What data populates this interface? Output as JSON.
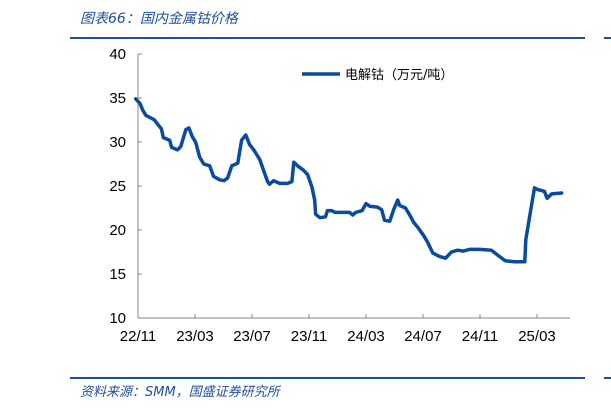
{
  "header": {
    "title": "图表66：国内金属钴价格"
  },
  "footer": {
    "source": "资料来源：SMM，国盛证券研究所"
  },
  "colors": {
    "accent": "#1f4e9a",
    "series": "#0a4a9f"
  },
  "chart_data": {
    "type": "line",
    "title": "",
    "xlabel": "",
    "ylabel": "",
    "ylim": [
      10,
      40
    ],
    "yticks": [
      10,
      15,
      20,
      25,
      30,
      35,
      40
    ],
    "xticks": [
      {
        "label": "22/11",
        "date": "2022-11-01"
      },
      {
        "label": "23/03",
        "date": "2023-03-01"
      },
      {
        "label": "23/07",
        "date": "2023-07-01"
      },
      {
        "label": "23/11",
        "date": "2023-11-01"
      },
      {
        "label": "24/03",
        "date": "2024-03-01"
      },
      {
        "label": "24/07",
        "date": "2024-07-01"
      },
      {
        "label": "24/11",
        "date": "2024-11-01"
      },
      {
        "label": "25/03",
        "date": "2025-03-01"
      }
    ],
    "grid": false,
    "legend_position": "top-right",
    "series": [
      {
        "name": "电解钴（万元/吨）",
        "points": [
          [
            "2022-10-27",
            34.9
          ],
          [
            "2022-11-05",
            34.4
          ],
          [
            "2022-11-11",
            33.6
          ],
          [
            "2022-11-18",
            33.0
          ],
          [
            "2022-11-26",
            32.8
          ],
          [
            "2022-12-06",
            32.5
          ],
          [
            "2022-12-13",
            32.0
          ],
          [
            "2022-12-21",
            31.5
          ],
          [
            "2022-12-25",
            30.5
          ],
          [
            "2023-01-08",
            30.2
          ],
          [
            "2023-01-12",
            29.4
          ],
          [
            "2023-01-25",
            29.1
          ],
          [
            "2023-02-01",
            29.5
          ],
          [
            "2023-02-11",
            31.4
          ],
          [
            "2023-02-17",
            31.6
          ],
          [
            "2023-02-23",
            30.7
          ],
          [
            "2023-03-03",
            29.9
          ],
          [
            "2023-03-11",
            28.3
          ],
          [
            "2023-03-20",
            27.5
          ],
          [
            "2023-04-02",
            27.3
          ],
          [
            "2023-04-10",
            26.1
          ],
          [
            "2023-04-23",
            25.7
          ],
          [
            "2023-05-02",
            25.6
          ],
          [
            "2023-05-10",
            25.9
          ],
          [
            "2023-05-19",
            27.3
          ],
          [
            "2023-06-01",
            27.6
          ],
          [
            "2023-06-09",
            30.2
          ],
          [
            "2023-06-18",
            30.8
          ],
          [
            "2023-06-26",
            29.7
          ],
          [
            "2023-07-05",
            29.1
          ],
          [
            "2023-07-18",
            28.0
          ],
          [
            "2023-07-26",
            26.8
          ],
          [
            "2023-08-04",
            25.5
          ],
          [
            "2023-08-08",
            25.2
          ],
          [
            "2023-08-17",
            25.6
          ],
          [
            "2023-08-30",
            25.3
          ],
          [
            "2023-09-16",
            25.3
          ],
          [
            "2023-09-25",
            25.5
          ],
          [
            "2023-09-29",
            27.7
          ],
          [
            "2023-10-07",
            27.3
          ],
          [
            "2023-10-20",
            26.8
          ],
          [
            "2023-10-29",
            26.3
          ],
          [
            "2023-11-07",
            24.9
          ],
          [
            "2023-11-13",
            23.4
          ],
          [
            "2023-11-15",
            21.8
          ],
          [
            "2023-11-24",
            21.4
          ],
          [
            "2023-12-06",
            21.5
          ],
          [
            "2023-12-10",
            22.2
          ],
          [
            "2023-12-19",
            22.2
          ],
          [
            "2023-12-27",
            22.0
          ],
          [
            "2024-01-06",
            22.0
          ],
          [
            "2024-01-27",
            22.0
          ],
          [
            "2024-02-03",
            21.7
          ],
          [
            "2024-02-09",
            22.0
          ],
          [
            "2024-02-22",
            22.2
          ],
          [
            "2024-03-01",
            23.0
          ],
          [
            "2024-03-09",
            22.7
          ],
          [
            "2024-03-26",
            22.6
          ],
          [
            "2024-04-04",
            22.3
          ],
          [
            "2024-04-10",
            21.1
          ],
          [
            "2024-04-21",
            21.0
          ],
          [
            "2024-04-29",
            22.3
          ],
          [
            "2024-05-08",
            23.4
          ],
          [
            "2024-05-12",
            22.8
          ],
          [
            "2024-05-25",
            22.5
          ],
          [
            "2024-06-03",
            21.7
          ],
          [
            "2024-06-11",
            20.9
          ],
          [
            "2024-06-20",
            20.3
          ],
          [
            "2024-07-02",
            19.4
          ],
          [
            "2024-07-11",
            18.6
          ],
          [
            "2024-07-22",
            17.4
          ],
          [
            "2024-08-06",
            17.0
          ],
          [
            "2024-08-19",
            16.8
          ],
          [
            "2024-09-01",
            17.5
          ],
          [
            "2024-09-14",
            17.7
          ],
          [
            "2024-09-26",
            17.6
          ],
          [
            "2024-10-09",
            17.8
          ],
          [
            "2024-11-01",
            17.8
          ],
          [
            "2024-11-25",
            17.7
          ],
          [
            "2024-12-12",
            17.0
          ],
          [
            "2024-12-25",
            16.5
          ],
          [
            "2025-01-14",
            16.4
          ],
          [
            "2025-02-05",
            16.4
          ],
          [
            "2025-02-07",
            18.9
          ],
          [
            "2025-02-15",
            21.7
          ],
          [
            "2025-02-24",
            24.8
          ],
          [
            "2025-03-02",
            24.6
          ],
          [
            "2025-03-17",
            24.4
          ],
          [
            "2025-03-23",
            23.6
          ],
          [
            "2025-04-02",
            24.1
          ],
          [
            "2025-04-23",
            24.2
          ]
        ]
      }
    ]
  }
}
